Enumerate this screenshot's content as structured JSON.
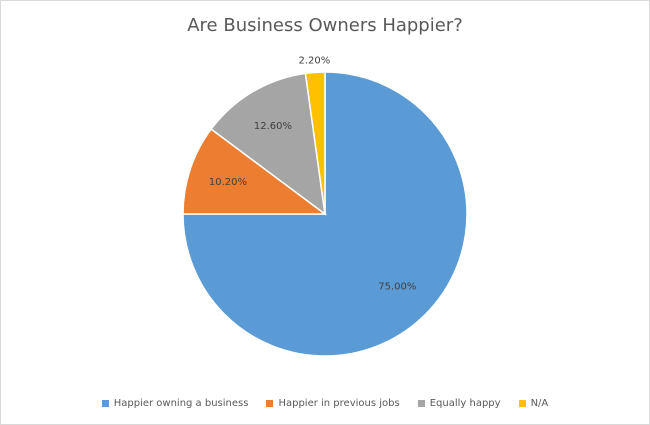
{
  "chart_data": {
    "type": "pie",
    "title": "Are Business Owners Happier?",
    "categories": [
      "Happier owning a business",
      "Happier in previous jobs",
      "Equally happy",
      "N/A"
    ],
    "values": [
      75.0,
      10.2,
      12.6,
      2.2
    ],
    "data_labels": [
      "75.00%",
      "10.20%",
      "12.60%",
      "2.20%"
    ],
    "colors": [
      "#5b9bd5",
      "#ed7d31",
      "#a5a5a5",
      "#ffc000"
    ],
    "legend_position": "bottom",
    "start_angle": "12 o'clock, clockwise"
  }
}
